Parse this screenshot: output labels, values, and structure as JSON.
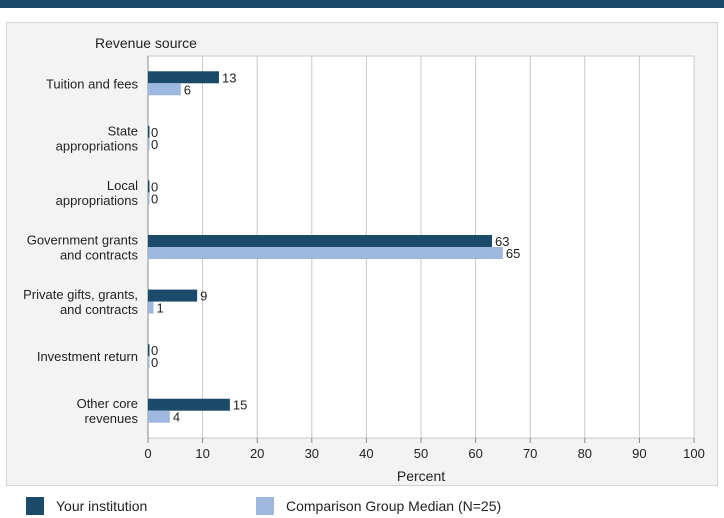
{
  "chart_data": {
    "type": "bar",
    "orientation": "horizontal",
    "title": "Revenue source",
    "xlabel": "Percent",
    "xlim": [
      0,
      100
    ],
    "xticks": [
      0,
      10,
      20,
      30,
      40,
      50,
      60,
      70,
      80,
      90,
      100
    ],
    "grid": true,
    "categories": [
      [
        "Tuition and fees"
      ],
      [
        "State",
        "appropriations"
      ],
      [
        "Local",
        "appropriations"
      ],
      [
        "Government grants",
        "and contracts"
      ],
      [
        "Private gifts, grants,",
        "and contracts"
      ],
      [
        "Investment return"
      ],
      [
        "Other core",
        "revenues"
      ]
    ],
    "series": [
      {
        "name": "Your institution",
        "color": "#1b4a6b",
        "values": [
          13,
          0,
          0,
          63,
          9,
          0,
          15
        ]
      },
      {
        "name": "Comparison Group Median (N=25)",
        "color": "#9db7de",
        "values": [
          6,
          0,
          0,
          65,
          1,
          0,
          4
        ]
      }
    ],
    "legend_position": "bottom"
  }
}
